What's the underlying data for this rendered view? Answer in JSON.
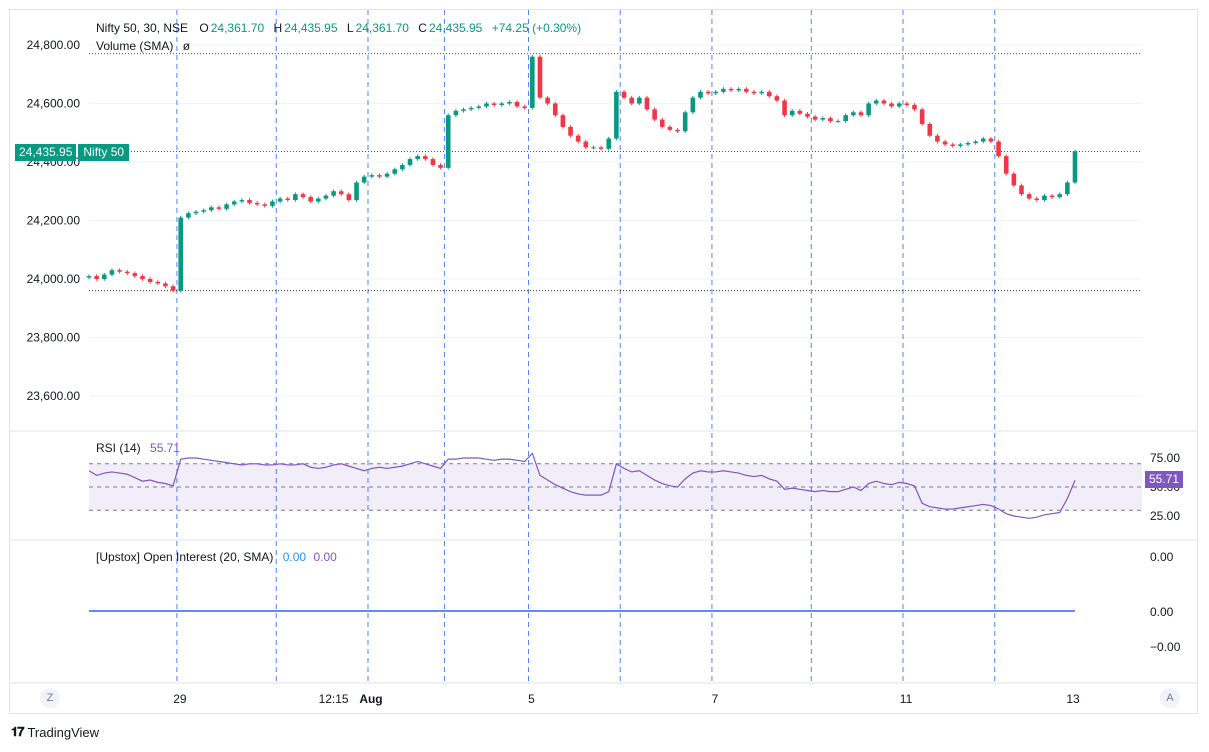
{
  "header": {
    "symbol": "Nifty 50, 30, NSE",
    "open_label": "O",
    "open": "24,361.70",
    "high_label": "H",
    "high": "24,435.95",
    "low_label": "L",
    "low": "24,361.70",
    "close_label": "C",
    "close": "24,435.95",
    "change": "+74.25 (+0.30%)",
    "volume_indicator": "Volume (SMA)",
    "volume_value": "ø"
  },
  "price_tag": {
    "value": "24,435.95",
    "symbol": "Nifty 50"
  },
  "rsi": {
    "label": "RSI (14)",
    "value": "55.71",
    "tag": "55.71"
  },
  "oi": {
    "label": "[Upstox] Open Interest (20, SMA)",
    "value1": "0.00",
    "value2": "0.00"
  },
  "colors": {
    "up": "#089981",
    "down": "#f23645",
    "rsi": "#7e57c2",
    "oi": "#2962ff",
    "session": "#2962ff"
  },
  "buttons": {
    "left": "Z",
    "right": "A"
  },
  "brand": "TradingView",
  "chart_data": [
    {
      "type": "candlestick",
      "title": "Nifty 50, 30, NSE",
      "y_ticks": [
        "24,800.00",
        "24,600.00",
        "24,400.00",
        "24,200.00",
        "24,000.00",
        "23,800.00",
        "23,600.00"
      ],
      "y_tick_values": [
        24800,
        24600,
        24400,
        24200,
        24000,
        23800,
        23600
      ],
      "ylim": [
        23520,
        24900
      ],
      "x_ticks": [
        "29",
        "12:15",
        "Aug",
        "5",
        "7",
        "11",
        "13"
      ],
      "last_close": 24435.95,
      "dotted_levels": [
        24770,
        24435.95,
        23960
      ],
      "closes": [
        24010,
        24000,
        24015,
        24030,
        24025,
        24020,
        24010,
        24000,
        23990,
        23985,
        23975,
        23960,
        24210,
        24225,
        24230,
        24235,
        24245,
        24240,
        24255,
        24265,
        24270,
        24260,
        24255,
        24250,
        24265,
        24275,
        24270,
        24290,
        24280,
        24265,
        24275,
        24285,
        24300,
        24290,
        24270,
        24330,
        24350,
        24355,
        24350,
        24360,
        24375,
        24390,
        24410,
        24420,
        24410,
        24390,
        24380,
        24560,
        24575,
        24580,
        24585,
        24590,
        24600,
        24595,
        24600,
        24605,
        24590,
        24585,
        24760,
        24620,
        24600,
        24560,
        24520,
        24490,
        24470,
        24450,
        24450,
        24445,
        24480,
        24640,
        24620,
        24600,
        24620,
        24580,
        24545,
        24520,
        24510,
        24505,
        24570,
        24620,
        24640,
        24635,
        24640,
        24650,
        24645,
        24650,
        24640,
        24635,
        24640,
        24625,
        24610,
        24560,
        24575,
        24565,
        24555,
        24545,
        24550,
        24540,
        24540,
        24560,
        24570,
        24560,
        24600,
        24610,
        24600,
        24590,
        24600,
        24595,
        24580,
        24530,
        24490,
        24470,
        24460,
        24455,
        24460,
        24465,
        24470,
        24480,
        24470,
        24420,
        24360,
        24320,
        24290,
        24275,
        24270,
        24285,
        24280,
        24290,
        24330,
        24435.95
      ]
    },
    {
      "type": "line",
      "title": "RSI (14)",
      "y_ticks": [
        "75.00",
        "50.00",
        "25.00"
      ],
      "y_tick_values": [
        75,
        50,
        25
      ],
      "ylim": [
        10,
        85
      ],
      "band": [
        30,
        70
      ],
      "mid": 50,
      "series": [
        {
          "values": [
            64,
            60,
            62,
            63,
            62,
            61,
            58,
            55,
            56,
            54,
            53,
            51,
            74,
            75,
            75,
            74,
            73,
            72,
            71,
            70,
            69,
            70,
            70,
            69,
            69,
            70,
            69,
            69,
            70,
            67,
            66,
            67,
            69,
            70,
            68,
            66,
            64,
            66,
            67,
            66,
            67,
            68,
            70,
            72,
            70,
            68,
            66,
            74,
            74,
            75,
            75,
            75,
            74,
            73,
            74,
            74,
            73,
            72,
            79,
            60,
            56,
            52,
            49,
            46,
            44,
            43,
            43,
            43,
            46,
            70,
            66,
            63,
            64,
            60,
            56,
            53,
            51,
            50,
            57,
            62,
            64,
            63,
            63,
            64,
            63,
            62,
            60,
            59,
            60,
            57,
            55,
            48,
            49,
            48,
            47,
            46,
            47,
            46,
            46,
            48,
            50,
            47,
            53,
            55,
            53,
            52,
            54,
            53,
            51,
            36,
            33,
            32,
            31,
            31,
            32,
            33,
            34,
            35,
            34,
            31,
            27,
            25,
            24,
            23,
            24,
            26,
            27,
            28,
            40,
            55.71
          ]
        }
      ]
    },
    {
      "type": "line",
      "title": "[Upstox] Open Interest (20, SMA)",
      "y_ticks": [
        "0.00",
        "0.00",
        "−0.00"
      ],
      "series": [
        {
          "values": [
            0,
            0
          ]
        }
      ]
    }
  ]
}
